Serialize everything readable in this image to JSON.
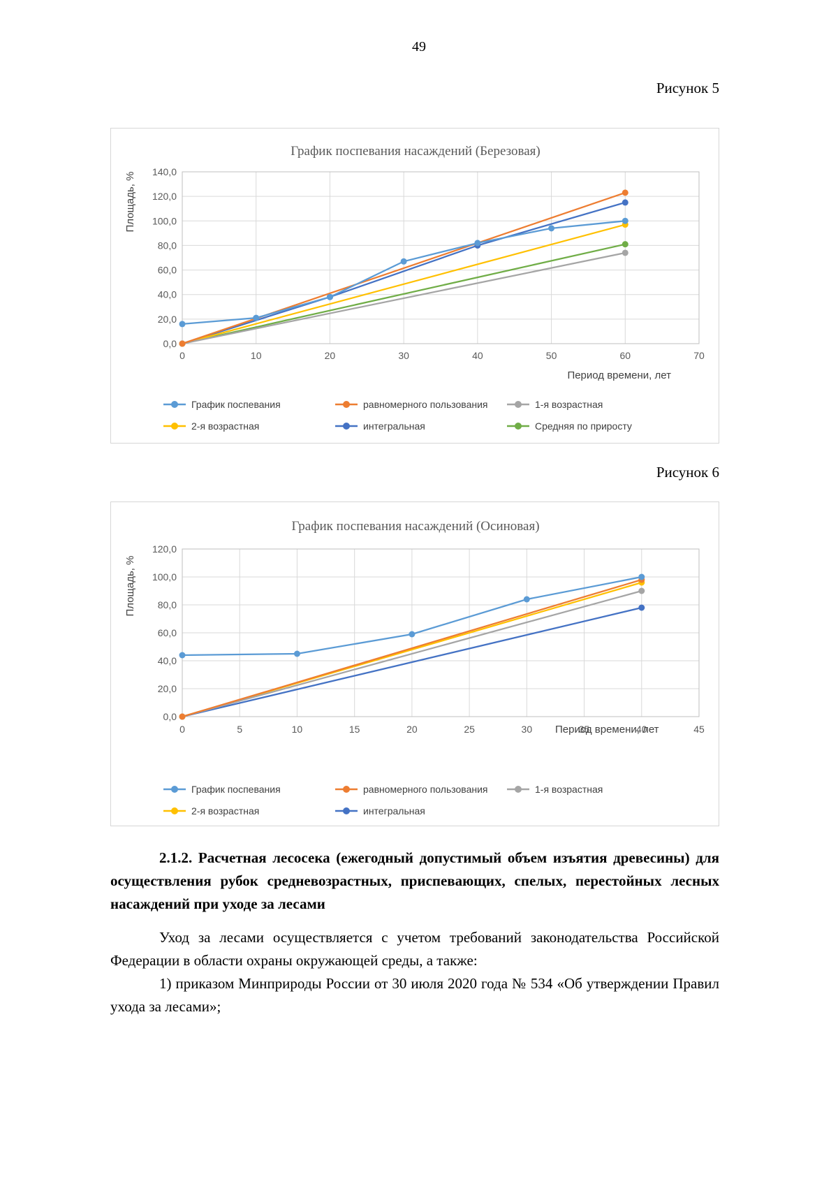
{
  "page": {
    "number": "49"
  },
  "figures": [
    {
      "caption": "Рисунок 5"
    },
    {
      "caption": "Рисунок 6"
    }
  ],
  "section": {
    "heading": "2.1.2. Расчетная лесосека (ежегодный допустимый объем изъятия древесины) для осуществления рубок средневозрастных, приспевающих, спелых, перестойных лесных насаждений при уходе за лесами",
    "paragraphs": [
      "Уход за лесами осуществляется с учетом требований законодательства Российской Федерации в области охраны окружающей среды, а также:",
      "1) приказом Минприроды России от 30 июля 2020 года № 534 «Об утверждении Правил ухода за лесами»;"
    ]
  },
  "chart_data": [
    {
      "type": "line",
      "title": "График поспевания насаждений (Березовая)",
      "xlabel": "Период времени, лет",
      "ylabel": "Площадь, %",
      "xlim": [
        0,
        70
      ],
      "ylim": [
        0,
        140
      ],
      "xticks": [
        0,
        10,
        20,
        30,
        40,
        50,
        60,
        70
      ],
      "yticks": [
        0,
        20,
        40,
        60,
        80,
        100,
        120,
        140
      ],
      "grid": true,
      "legend_position": "bottom",
      "series": [
        {
          "name": "График поспевания",
          "color": "#5B9BD5",
          "x": [
            0,
            10,
            20,
            30,
            40,
            50,
            60
          ],
          "y": [
            16,
            21,
            38,
            67,
            82,
            94,
            100
          ]
        },
        {
          "name": "равномерного пользования",
          "color": "#ED7D31",
          "x": [
            0,
            60
          ],
          "y": [
            0,
            123
          ]
        },
        {
          "name": "1-я возрастная",
          "color": "#A5A5A5",
          "x": [
            0,
            60
          ],
          "y": [
            0,
            74
          ]
        },
        {
          "name": "2-я возрастная",
          "color": "#FFC000",
          "x": [
            0,
            60
          ],
          "y": [
            0,
            97
          ]
        },
        {
          "name": "интегральная",
          "color": "#4472C4",
          "x": [
            0,
            20,
            40,
            60
          ],
          "y": [
            0,
            38,
            80,
            115
          ]
        },
        {
          "name": "Средняя по приросту",
          "color": "#70AD47",
          "x": [
            0,
            60
          ],
          "y": [
            0,
            81
          ]
        }
      ]
    },
    {
      "type": "line",
      "title": "График поспевания насаждений (Осиновая)",
      "xlabel": "Период времени, лет",
      "ylabel": "Площадь, %",
      "xlim": [
        0,
        45
      ],
      "ylim": [
        0,
        120
      ],
      "xticks": [
        0,
        5,
        10,
        15,
        20,
        25,
        30,
        35,
        40,
        45
      ],
      "yticks": [
        0,
        20,
        40,
        60,
        80,
        100,
        120
      ],
      "grid": true,
      "legend_position": "bottom",
      "series": [
        {
          "name": "График поспевания",
          "color": "#5B9BD5",
          "x": [
            0,
            10,
            20,
            30,
            40
          ],
          "y": [
            44,
            45,
            59,
            84,
            100
          ]
        },
        {
          "name": "равномерного пользования",
          "color": "#ED7D31",
          "x": [
            0,
            40
          ],
          "y": [
            0,
            98
          ]
        },
        {
          "name": "1-я возрастная",
          "color": "#A5A5A5",
          "x": [
            0,
            40
          ],
          "y": [
            0,
            90
          ]
        },
        {
          "name": "2-я возрастная",
          "color": "#FFC000",
          "x": [
            0,
            40
          ],
          "y": [
            0,
            96
          ]
        },
        {
          "name": "интегральная",
          "color": "#4472C4",
          "x": [
            0,
            40
          ],
          "y": [
            0,
            78
          ]
        }
      ]
    }
  ]
}
